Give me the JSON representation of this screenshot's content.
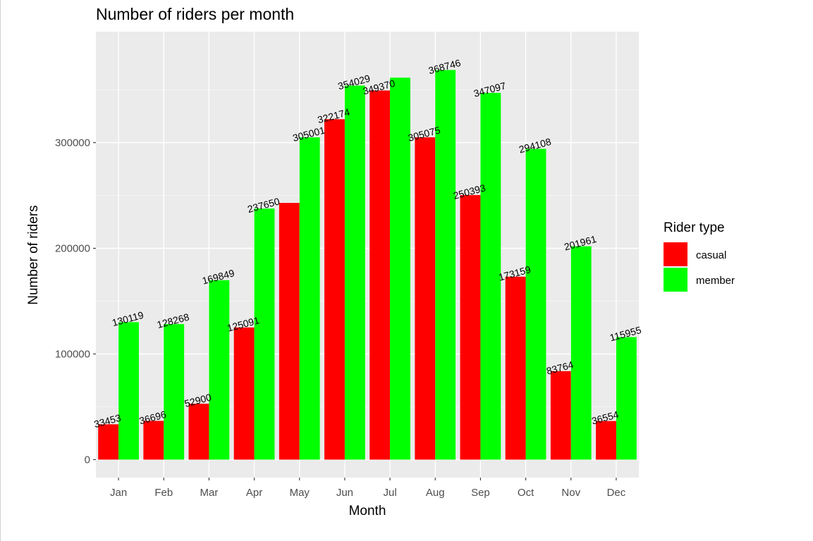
{
  "chart_data": {
    "type": "bar",
    "title": "Number of riders per month",
    "xlabel": "Month",
    "ylabel": "Number of riders",
    "categories": [
      "Jan",
      "Feb",
      "Mar",
      "Apr",
      "May",
      "Jun",
      "Jul",
      "Aug",
      "Sep",
      "Oct",
      "Nov",
      "Dec"
    ],
    "series": [
      {
        "name": "casual",
        "color": "#ff0000",
        "values": [
          33453,
          36696,
          52900,
          125091,
          243000,
          322174,
          349370,
          305075,
          250393,
          173159,
          83764,
          36554
        ],
        "labels": [
          "33453",
          "36696",
          "52900",
          "125091",
          "",
          "322174",
          "349370",
          "305075",
          "250393",
          "173159",
          "83764",
          "36554"
        ]
      },
      {
        "name": "member",
        "color": "#00ff00",
        "values": [
          130119,
          128268,
          169849,
          237650,
          305001,
          354029,
          361500,
          368746,
          347097,
          294108,
          201961,
          115955
        ],
        "labels": [
          "130119",
          "128268",
          "169849",
          "237650",
          "305001",
          "354029",
          "",
          "368746",
          "347097",
          "294108",
          "201961",
          "115955"
        ]
      }
    ],
    "y_ticks": [
      0,
      100000,
      200000,
      300000
    ],
    "y_tick_labels": [
      "0",
      "100000",
      "200000",
      "300000"
    ],
    "ylim": [
      -17000,
      405000
    ],
    "legend": {
      "title": "Rider type",
      "position": "right"
    },
    "grid": true,
    "panel_background": "#ebebeb"
  }
}
